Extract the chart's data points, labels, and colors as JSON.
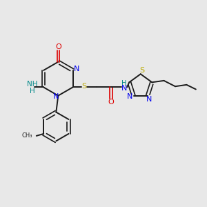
{
  "background_color": "#e8e8e8",
  "bond_color": "#1a1a1a",
  "N_color": "#0000ee",
  "O_color": "#dd0000",
  "S_color": "#bbaa00",
  "NH2_color": "#008888",
  "NH_color": "#008888",
  "figsize": [
    3.0,
    3.0
  ],
  "dpi": 100,
  "xlim": [
    0,
    10
  ],
  "ylim": [
    0,
    10
  ]
}
